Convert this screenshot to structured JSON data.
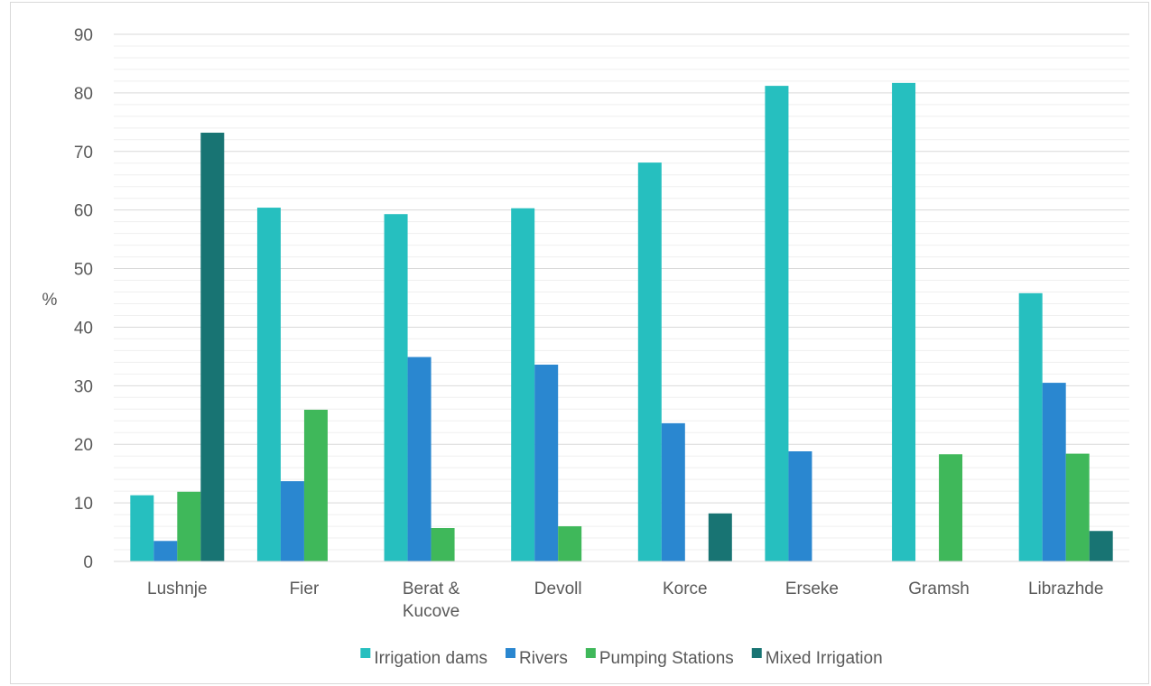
{
  "chart_data": {
    "type": "bar",
    "title": "",
    "xlabel": "",
    "ylabel": "%",
    "ylim": [
      0,
      90
    ],
    "y_major_step": 10,
    "y_minor_step": 2,
    "grid": true,
    "legend_position": "bottom",
    "categories": [
      [
        "Lushnje"
      ],
      [
        "Fier"
      ],
      [
        "Berat &",
        "Kucove"
      ],
      [
        "Devoll"
      ],
      [
        "Korce"
      ],
      [
        "Erseke"
      ],
      [
        "Gramsh"
      ],
      [
        "Librazhde"
      ]
    ],
    "series": [
      {
        "name": "Irrigation dams",
        "color": "#26bfbf",
        "values": [
          11.3,
          60.4,
          59.3,
          60.3,
          68.1,
          81.2,
          81.7,
          45.8
        ]
      },
      {
        "name": "Rivers",
        "color": "#2a87d0",
        "values": [
          3.5,
          13.7,
          34.9,
          33.6,
          23.6,
          18.8,
          0,
          30.5
        ]
      },
      {
        "name": "Pumping Stations",
        "color": "#3fb85a",
        "values": [
          11.9,
          25.9,
          5.7,
          6.0,
          0,
          0,
          18.3,
          18.4
        ]
      },
      {
        "name": "Mixed Irrigation",
        "color": "#187473",
        "values": [
          73.2,
          0,
          0,
          0,
          8.2,
          0,
          0,
          5.2
        ]
      }
    ]
  }
}
